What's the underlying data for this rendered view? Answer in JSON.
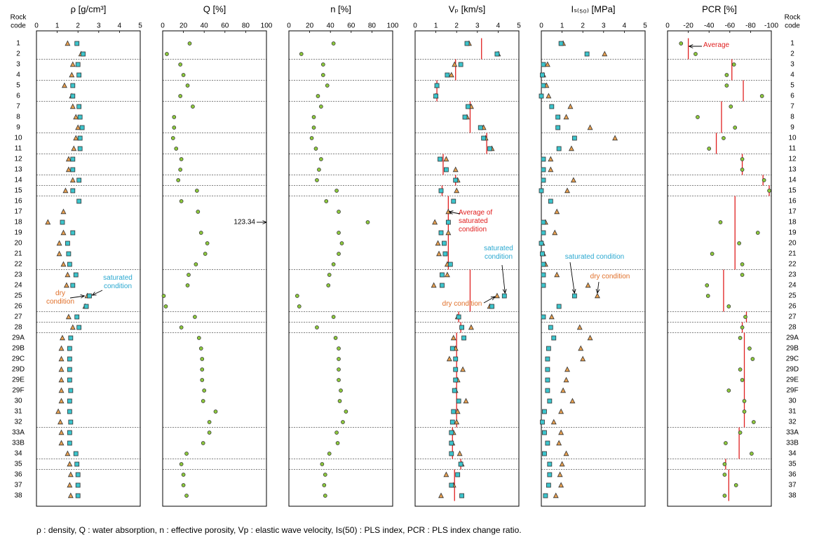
{
  "row_header": [
    "Rock",
    "code"
  ],
  "rock_codes": [
    "1",
    "2",
    "3",
    "4",
    "5",
    "6",
    "7",
    "8",
    "9",
    "10",
    "11",
    "12",
    "13",
    "14",
    "15",
    "16",
    "17",
    "18",
    "19",
    "20",
    "21",
    "22",
    "23",
    "24",
    "25",
    "26",
    "27",
    "28",
    "29A",
    "29B",
    "29C",
    "29D",
    "29E",
    "29F",
    "30",
    "31",
    "32",
    "33A",
    "33B",
    "34",
    "35",
    "36",
    "37",
    "38"
  ],
  "caption": "ρ : density, Q : water absorption, n : effective porosity, Vp : elastic wave velocity, Is(50) : PLS index, PCR : PLS index change ratio.",
  "chart_data": [
    {
      "type": "scatter",
      "title": "ρ [g/cm³]",
      "xlim": [
        0,
        5
      ],
      "xticks": [
        0,
        1,
        2,
        3,
        4,
        5
      ],
      "series": [
        {
          "name": "dry condition",
          "marker": "triangle",
          "color": "#e8a050",
          "label_color": "#e0702a",
          "values": [
            1.5,
            2.15,
            1.75,
            1.7,
            1.35,
            1.7,
            1.75,
            1.9,
            2.0,
            1.9,
            1.8,
            1.55,
            1.55,
            1.75,
            1.4,
            null,
            1.3,
            0.55,
            1.3,
            1.1,
            1.1,
            1.3,
            1.5,
            1.45,
            2.45,
            2.35,
            1.55,
            1.75,
            1.25,
            1.2,
            1.2,
            1.2,
            1.2,
            1.2,
            1.2,
            1.05,
            1.15,
            1.2,
            1.2,
            1.5,
            1.6,
            1.65,
            1.6,
            1.65
          ]
        },
        {
          "name": "saturated condition",
          "marker": "square",
          "color": "#3cc4cc",
          "label_color": "#2aa8d0",
          "values": [
            1.95,
            2.25,
            2.0,
            2.05,
            1.75,
            1.75,
            2.05,
            2.1,
            2.2,
            2.1,
            2.1,
            1.75,
            1.75,
            2.05,
            1.75,
            2.05,
            null,
            1.25,
            1.75,
            1.5,
            1.55,
            1.6,
            1.9,
            1.75,
            2.55,
            2.4,
            1.95,
            2.05,
            1.65,
            1.6,
            1.6,
            1.6,
            1.6,
            1.65,
            1.6,
            1.6,
            1.65,
            1.6,
            1.6,
            1.9,
            1.95,
            2.0,
            2.0,
            2.0
          ]
        }
      ]
    },
    {
      "type": "scatter",
      "title": "Q [%]",
      "xlim": [
        0,
        100
      ],
      "xticks": [
        0,
        20,
        40,
        60,
        80,
        100
      ],
      "series": [
        {
          "marker": "circle",
          "color": "#8cc83c",
          "values": [
            26,
            4,
            17,
            20,
            24,
            17,
            29,
            11,
            11,
            10,
            13,
            18,
            17,
            15,
            33,
            18,
            34,
            123.34,
            37,
            43,
            41,
            32,
            25,
            24,
            1,
            3,
            31,
            18,
            35,
            37,
            38,
            38,
            38,
            40,
            39,
            51,
            45,
            45,
            39,
            23,
            18,
            20,
            20,
            23
          ]
        }
      ]
    },
    {
      "type": "scatter",
      "title": "n [%]",
      "xlim": [
        0,
        100
      ],
      "xticks": [
        0,
        20,
        40,
        60,
        80,
        100
      ],
      "series": [
        {
          "marker": "circle",
          "color": "#8cc83c",
          "values": [
            43,
            12,
            33,
            33,
            37,
            28,
            31,
            24,
            24,
            22,
            26,
            31,
            29,
            27,
            46,
            36,
            48,
            76,
            48,
            51,
            48,
            43,
            39,
            38,
            8,
            10,
            43,
            27,
            45,
            48,
            48,
            48,
            48,
            50,
            49,
            55,
            52,
            46,
            47,
            39,
            32,
            35,
            34,
            35
          ]
        }
      ]
    },
    {
      "type": "scatter",
      "title": "Vₚ [km/s]",
      "xlim": [
        0,
        5
      ],
      "xticks": [
        0,
        1,
        2,
        3,
        4,
        5
      ],
      "series": [
        {
          "name": "Average of saturated condition",
          "marker": "line",
          "color": "#e02020",
          "label_color": "#e02020",
          "values": [
            3.2,
            3.2,
            1.95,
            1.95,
            1.05,
            1.05,
            2.65,
            2.65,
            2.65,
            3.45,
            3.45,
            1.35,
            1.35,
            1.95,
            1.3,
            1.6,
            1.6,
            1.6,
            1.6,
            1.6,
            1.6,
            1.6,
            2.65,
            2.65,
            2.65,
            2.65,
            2.1,
            2.2,
            2.0,
            2.0,
            2.0,
            2.0,
            2.0,
            2.0,
            2.0,
            2.0,
            2.0,
            1.8,
            1.8,
            1.8,
            2.2,
            1.9,
            1.9,
            1.9
          ]
        },
        {
          "name": "dry condition",
          "marker": "triangle",
          "color": "#e8a050",
          "label_color": "#e0702a",
          "values": [
            2.6,
            4.0,
            1.9,
            1.75,
            1.05,
            1.0,
            2.7,
            2.5,
            3.3,
            3.4,
            3.7,
            1.5,
            1.95,
            2.05,
            2.0,
            null,
            1.6,
            0.95,
            1.6,
            1.1,
            1.15,
            1.55,
            1.55,
            0.9,
            3.95,
            3.6,
            2.05,
            2.7,
            1.85,
            1.95,
            1.65,
            2.3,
            2.05,
            1.95,
            2.45,
            2.05,
            2.0,
            1.85,
            1.8,
            2.15,
            2.25,
            1.5,
            1.85,
            1.25
          ]
        },
        {
          "name": "saturated condition",
          "marker": "square",
          "color": "#3cc4cc",
          "label_color": "#2aa8d0",
          "values": [
            2.5,
            3.95,
            2.2,
            1.55,
            1.05,
            1.0,
            2.55,
            2.4,
            3.15,
            3.3,
            3.6,
            1.2,
            1.5,
            1.95,
            1.25,
            1.85,
            null,
            1.6,
            1.25,
            1.4,
            1.45,
            1.7,
            1.3,
            1.3,
            4.3,
            3.7,
            2.1,
            2.25,
            2.35,
            1.8,
            1.95,
            1.95,
            1.95,
            1.9,
            2.1,
            1.85,
            1.8,
            1.75,
            1.75,
            1.75,
            2.2,
            2.05,
            1.75,
            2.25
          ]
        }
      ]
    },
    {
      "type": "scatter",
      "title": "Iₛ₍₅₀₎ [MPa]",
      "xlim": [
        0,
        5
      ],
      "xticks": [
        0,
        1,
        2,
        3,
        4,
        5
      ],
      "series": [
        {
          "name": "dry condition",
          "marker": "triangle",
          "color": "#e8a050",
          "label_color": "#e0702a",
          "values": [
            1.05,
            3.05,
            0.3,
            0.1,
            0.25,
            0.35,
            1.4,
            1.2,
            2.35,
            3.55,
            1.45,
            0.45,
            0.45,
            1.55,
            1.25,
            null,
            0.75,
            0.2,
            0.65,
            0.05,
            0.1,
            0.2,
            0.75,
            2.25,
            2.7,
            null,
            0.5,
            1.85,
            2.35,
            1.9,
            2.0,
            1.25,
            1.2,
            1.05,
            1.5,
            0.95,
            0.6,
            0.95,
            0.85,
            1.2,
            1.0,
            0.9,
            0.95,
            0.7
          ]
        },
        {
          "name": "saturated condition",
          "marker": "square",
          "color": "#3cc4cc",
          "label_color": "#2aa8d0",
          "values": [
            0.95,
            2.2,
            0.1,
            0.05,
            0.1,
            0.0,
            0.5,
            0.8,
            0.8,
            1.6,
            0.85,
            0.1,
            0.1,
            0.1,
            0.0,
            0.45,
            null,
            0.1,
            0.1,
            0.0,
            0.05,
            0.1,
            0.1,
            0.1,
            1.6,
            0.85,
            0.1,
            0.45,
            0.6,
            0.35,
            0.3,
            0.3,
            0.3,
            0.3,
            0.4,
            0.15,
            0.05,
            0.15,
            0.3,
            0.15,
            0.4,
            0.4,
            0.35,
            0.2
          ]
        }
      ]
    },
    {
      "type": "scatter",
      "title": "PCR [%]",
      "xlim": [
        0,
        -100
      ],
      "xticks": [
        0,
        -20,
        -40,
        -60,
        -80,
        -100
      ],
      "series": [
        {
          "name": "Average",
          "marker": "line",
          "color": "#e02020",
          "label_color": "#e02020",
          "values": [
            -20,
            -20,
            -62,
            -62,
            -73,
            -73,
            -52,
            -52,
            -52,
            -47,
            -47,
            -72,
            -72,
            -92,
            -98,
            -65,
            -65,
            -65,
            -65,
            -65,
            -65,
            -65,
            -54,
            -54,
            -54,
            -54,
            -76,
            -72,
            -74,
            -74,
            -74,
            -74,
            -74,
            -74,
            -74,
            -74,
            -74,
            -69,
            -69,
            -69,
            -56,
            -59,
            -59,
            -59
          ]
        },
        {
          "marker": "circle",
          "color": "#8cc83c",
          "values": [
            -13,
            -27,
            -64,
            -57,
            -57,
            -91,
            -61,
            -29,
            -65,
            -54,
            -40,
            -72,
            -72,
            -93,
            -98,
            null,
            null,
            -51,
            -87,
            -69,
            -43,
            -72,
            -72,
            -38,
            -39,
            -59,
            -75,
            -72,
            -70,
            -79,
            -82,
            -70,
            -72,
            -59,
            -74,
            -74,
            -83,
            -70,
            -56,
            -81,
            -55,
            -55,
            -66,
            -55
          ]
        }
      ]
    }
  ]
}
